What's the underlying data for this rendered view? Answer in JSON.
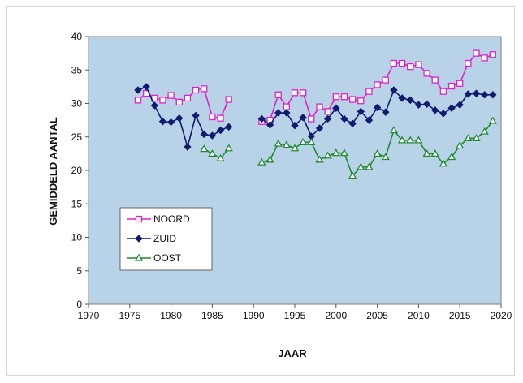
{
  "chart_data": {
    "type": "line",
    "title": "",
    "xlabel": "JAAR",
    "ylabel": "GEMIDDELD AANTAL",
    "xlim": [
      1970,
      2020
    ],
    "ylim": [
      0,
      40
    ],
    "xticks": [
      1970,
      1975,
      1980,
      1985,
      1990,
      1995,
      2000,
      2005,
      2010,
      2015,
      2020
    ],
    "yticks": [
      0,
      5,
      10,
      15,
      20,
      25,
      30,
      35,
      40
    ],
    "grid": false,
    "plot_background": "#b8d2e8",
    "legend_position": "lower-left",
    "series": [
      {
        "name": "NOORD",
        "color": "#e020c8",
        "marker": "square",
        "points": [
          [
            1976,
            30.5
          ],
          [
            1977,
            31.5
          ],
          [
            1978,
            30.8
          ],
          [
            1979,
            30.5
          ],
          [
            1980,
            31.2
          ],
          [
            1981,
            30.2
          ],
          [
            1982,
            30.8
          ],
          [
            1983,
            32.0
          ],
          [
            1984,
            32.2
          ],
          [
            1985,
            28.0
          ],
          [
            1986,
            27.8
          ],
          [
            1987,
            30.6
          ],
          null,
          [
            1991,
            27.3
          ],
          [
            1992,
            27.5
          ],
          [
            1993,
            31.3
          ],
          [
            1994,
            29.5
          ],
          [
            1995,
            31.6
          ],
          [
            1996,
            31.6
          ],
          [
            1997,
            27.7
          ],
          [
            1998,
            29.5
          ],
          [
            1999,
            28.8
          ],
          [
            2000,
            31.0
          ],
          [
            2001,
            31.0
          ],
          [
            2002,
            30.6
          ],
          [
            2003,
            30.4
          ],
          [
            2004,
            31.8
          ],
          [
            2005,
            32.8
          ],
          [
            2006,
            33.5
          ],
          [
            2007,
            36.0
          ],
          [
            2008,
            36.0
          ],
          [
            2009,
            35.5
          ],
          [
            2010,
            35.8
          ],
          [
            2011,
            34.5
          ],
          [
            2012,
            33.5
          ],
          [
            2013,
            31.8
          ],
          [
            2014,
            32.6
          ],
          [
            2015,
            33.0
          ],
          [
            2016,
            36.0
          ],
          [
            2017,
            37.5
          ],
          [
            2018,
            36.8
          ],
          [
            2019,
            37.3
          ]
        ]
      },
      {
        "name": "ZUID",
        "color": "#101a6e",
        "marker": "diamond",
        "points": [
          [
            1976,
            32.0
          ],
          [
            1977,
            32.5
          ],
          [
            1978,
            29.7
          ],
          [
            1979,
            27.3
          ],
          [
            1980,
            27.2
          ],
          [
            1981,
            27.8
          ],
          [
            1982,
            23.5
          ],
          [
            1983,
            28.2
          ],
          [
            1984,
            25.4
          ],
          [
            1985,
            25.2
          ],
          [
            1986,
            26.0
          ],
          [
            1987,
            26.5
          ],
          null,
          [
            1991,
            27.7
          ],
          [
            1992,
            26.8
          ],
          [
            1993,
            28.6
          ],
          [
            1994,
            28.6
          ],
          [
            1995,
            26.7
          ],
          [
            1996,
            27.9
          ],
          [
            1997,
            25.1
          ],
          [
            1998,
            26.3
          ],
          [
            1999,
            27.7
          ],
          [
            2000,
            29.3
          ],
          [
            2001,
            27.7
          ],
          [
            2002,
            27.0
          ],
          [
            2003,
            28.8
          ],
          [
            2004,
            27.5
          ],
          [
            2005,
            29.4
          ],
          [
            2006,
            28.7
          ],
          [
            2007,
            32.0
          ],
          [
            2008,
            30.8
          ],
          [
            2009,
            30.5
          ],
          [
            2010,
            29.8
          ],
          [
            2011,
            29.9
          ],
          [
            2012,
            29.0
          ],
          [
            2013,
            28.5
          ],
          [
            2014,
            29.3
          ],
          [
            2015,
            29.8
          ],
          [
            2016,
            31.4
          ],
          [
            2017,
            31.5
          ],
          [
            2018,
            31.3
          ],
          [
            2019,
            31.3
          ]
        ]
      },
      {
        "name": "OOST",
        "color": "#1f8a32",
        "marker": "triangle",
        "points": [
          [
            1984,
            23.2
          ],
          [
            1985,
            22.5
          ],
          [
            1986,
            21.8
          ],
          [
            1987,
            23.3
          ],
          null,
          [
            1991,
            21.2
          ],
          [
            1992,
            21.6
          ],
          [
            1993,
            24.0
          ],
          [
            1994,
            23.8
          ],
          [
            1995,
            23.3
          ],
          [
            1996,
            24.2
          ],
          [
            1997,
            24.2
          ],
          [
            1998,
            21.6
          ],
          [
            1999,
            22.2
          ],
          [
            2000,
            22.6
          ],
          [
            2001,
            22.6
          ],
          [
            2002,
            19.2
          ],
          [
            2003,
            20.5
          ],
          [
            2004,
            20.5
          ],
          [
            2005,
            22.5
          ],
          [
            2006,
            22.0
          ],
          [
            2007,
            26.0
          ],
          [
            2008,
            24.5
          ],
          [
            2009,
            24.5
          ],
          [
            2010,
            24.5
          ],
          [
            2011,
            22.5
          ],
          [
            2012,
            22.5
          ],
          [
            2013,
            21.0
          ],
          [
            2014,
            22.0
          ],
          [
            2015,
            23.7
          ],
          [
            2016,
            24.8
          ],
          [
            2017,
            24.8
          ],
          [
            2018,
            25.8
          ],
          [
            2019,
            27.4
          ]
        ]
      }
    ]
  }
}
